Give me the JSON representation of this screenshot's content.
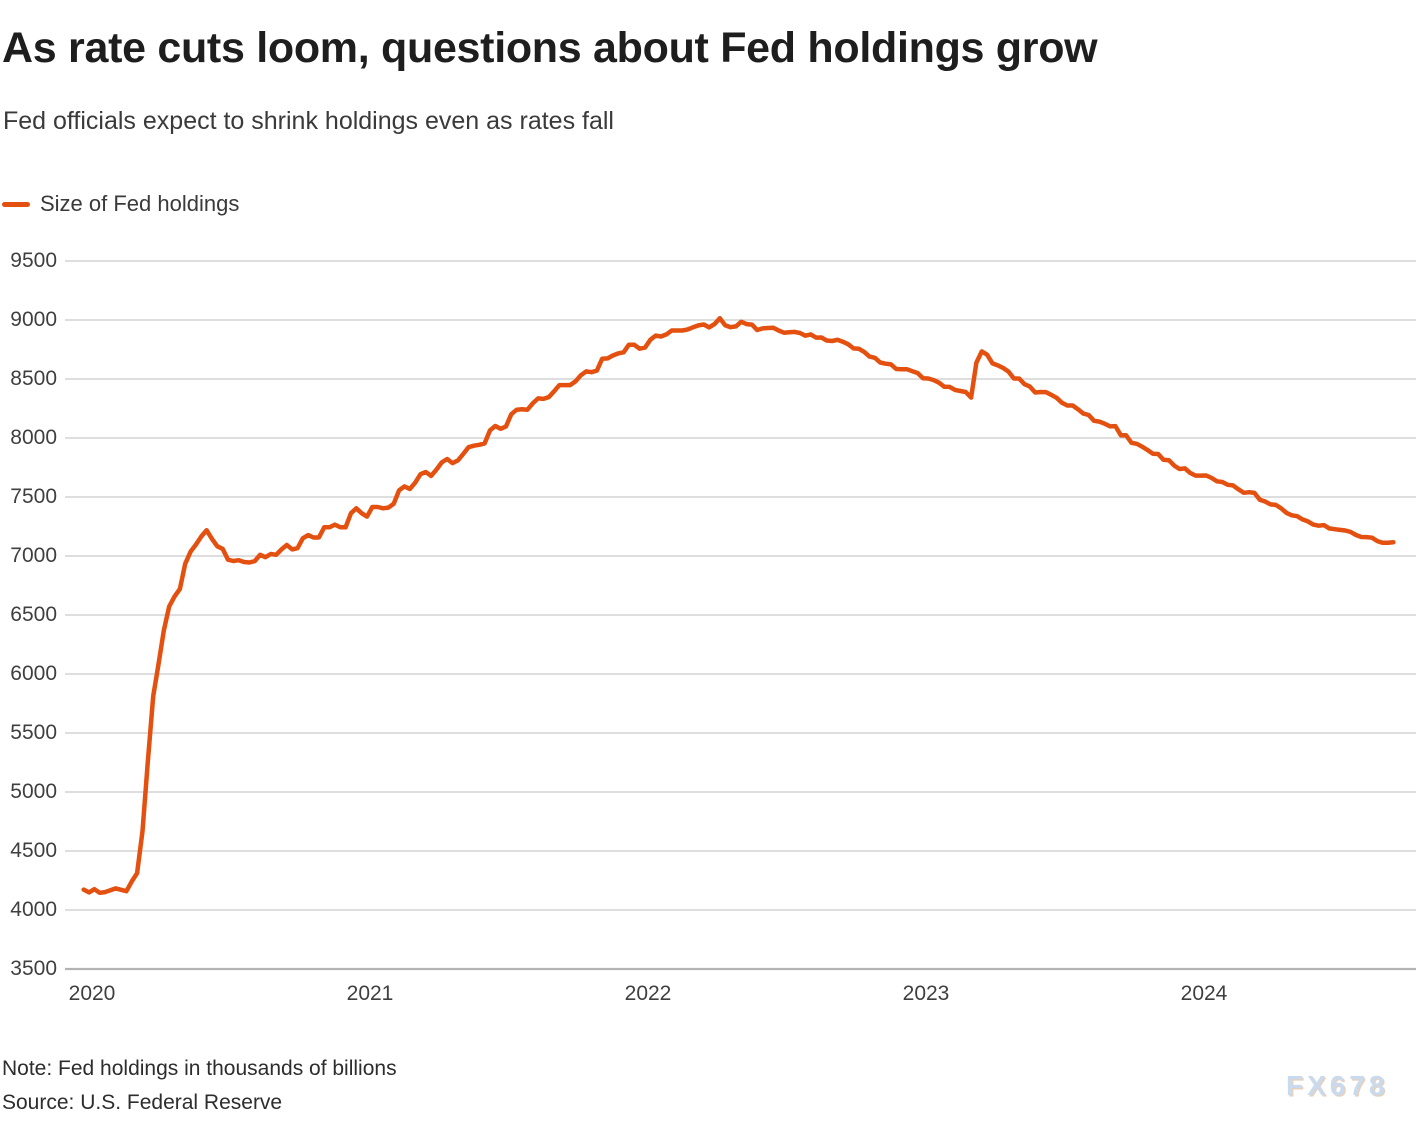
{
  "header": {
    "title": "As rate cuts loom, questions about Fed holdings grow",
    "subtitle": "Fed officials expect to shrink holdings even as rates fall"
  },
  "legend": {
    "items": [
      {
        "label": "Size of Fed holdings",
        "color": "#e4500f"
      }
    ]
  },
  "footer": {
    "note": "Note: Fed holdings in thousands of billions",
    "source": "Source: U.S. Federal Reserve",
    "watermark": "FX678"
  },
  "colors": {
    "line": "#e4500f",
    "grid": "#c9c9c9",
    "axis": "#b3b3b3",
    "tick_text": "#3f3f3f",
    "watermark": "#c9daee"
  },
  "chart_data": {
    "type": "line",
    "title": "As rate cuts loom, questions about Fed holdings grow",
    "subtitle": "Fed officials expect to shrink holdings even as rates fall",
    "xlabel": "",
    "ylabel": "",
    "unit_note": "thousands of billions",
    "grid": "horizontal",
    "legend_position": "top-left",
    "ylim": [
      3500,
      9500
    ],
    "xlim": [
      2019.9,
      2024.78
    ],
    "y_ticks": [
      3500,
      4000,
      4500,
      5000,
      5500,
      6000,
      6500,
      7000,
      7500,
      8000,
      8500,
      9000,
      9500
    ],
    "x_ticks": [
      2020,
      2021,
      2022,
      2023,
      2024
    ],
    "series": [
      {
        "name": "Size of Fed holdings",
        "color": "#e4500f",
        "x_start": 2019.97,
        "x_step_years": 0.01923,
        "values": [
          4173,
          4149,
          4176,
          4146,
          4152,
          4167,
          4183,
          4171,
          4159,
          4242,
          4312,
          4668,
          5254,
          5812,
          6083,
          6368,
          6573,
          6656,
          6721,
          6934,
          7037,
          7097,
          7165,
          7219,
          7145,
          7082,
          7060,
          6969,
          6958,
          6964,
          6949,
          6945,
          6957,
          7010,
          6990,
          7017,
          7010,
          7056,
          7093,
          7056,
          7066,
          7150,
          7177,
          7157,
          7157,
          7243,
          7243,
          7266,
          7243,
          7243,
          7363,
          7404,
          7363,
          7334,
          7415,
          7415,
          7404,
          7410,
          7442,
          7557,
          7590,
          7568,
          7620,
          7693,
          7712,
          7679,
          7733,
          7793,
          7822,
          7787,
          7810,
          7864,
          7922,
          7935,
          7942,
          7954,
          8064,
          8102,
          8078,
          8098,
          8202,
          8240,
          8244,
          8240,
          8293,
          8336,
          8331,
          8347,
          8396,
          8448,
          8448,
          8448,
          8480,
          8531,
          8564,
          8558,
          8571,
          8672,
          8675,
          8699,
          8717,
          8726,
          8791,
          8790,
          8757,
          8766,
          8832,
          8868,
          8860,
          8878,
          8911,
          8911,
          8911,
          8920,
          8938,
          8954,
          8962,
          8937,
          8965,
          9015,
          8955,
          8939,
          8946,
          8985,
          8965,
          8961,
          8915,
          8929,
          8932,
          8934,
          8911,
          8892,
          8896,
          8899,
          8890,
          8867,
          8878,
          8851,
          8852,
          8826,
          8822,
          8832,
          8816,
          8795,
          8759,
          8757,
          8730,
          8690,
          8680,
          8640,
          8630,
          8625,
          8585,
          8582,
          8583,
          8566,
          8551,
          8507,
          8504,
          8491,
          8469,
          8434,
          8433,
          8408,
          8398,
          8390,
          8342,
          8639,
          8734,
          8706,
          8632,
          8615,
          8593,
          8563,
          8504,
          8503,
          8456,
          8436,
          8386,
          8390,
          8389,
          8365,
          8341,
          8298,
          8275,
          8275,
          8243,
          8207,
          8195,
          8146,
          8139,
          8121,
          8098,
          8101,
          8024,
          8023,
          7959,
          7951,
          7926,
          7898,
          7867,
          7864,
          7815,
          7812,
          7766,
          7737,
          7742,
          7703,
          7681,
          7681,
          7682,
          7661,
          7633,
          7627,
          7603,
          7598,
          7565,
          7536,
          7541,
          7535,
          7477,
          7462,
          7437,
          7433,
          7403,
          7365,
          7345,
          7337,
          7310,
          7293,
          7266,
          7257,
          7262,
          7234,
          7227,
          7221,
          7216,
          7204,
          7178,
          7161,
          7160,
          7155,
          7126,
          7112,
          7113,
          7117
        ]
      }
    ]
  }
}
